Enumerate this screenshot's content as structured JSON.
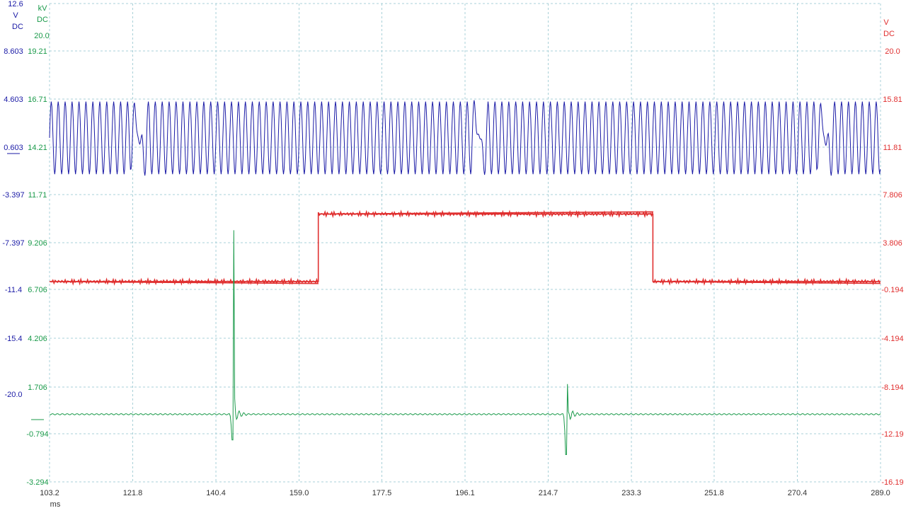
{
  "colors": {
    "blue": "#1a1aa6",
    "green": "#1a9a4a",
    "red": "#e03030",
    "grid": "#a8d0d8",
    "text": "#333333"
  },
  "chart_data": {
    "type": "line",
    "title": "",
    "grid": true,
    "x_axis": {
      "unit": "ms",
      "range": [
        103.2,
        289.0
      ],
      "ticks": [
        "103.2",
        "121.8",
        "140.4",
        "159.0",
        "177.5",
        "196.1",
        "214.7",
        "233.3",
        "251.8",
        "270.4",
        "289.0"
      ]
    },
    "axes": [
      {
        "id": "blue",
        "side": "left",
        "unit_lines": [
          "V",
          "DC"
        ],
        "top_label": "12.6",
        "range": [
          -23.0,
          12.6
        ],
        "ticks": [
          "8.603",
          "4.603",
          "0.603",
          "-3.397",
          "-7.397",
          "-11.4",
          "-15.4",
          "-20.0"
        ]
      },
      {
        "id": "green",
        "side": "left",
        "unit_lines": [
          "kV",
          "DC"
        ],
        "top_label": "20.0",
        "range": [
          -3.294,
          20.0
        ],
        "ticks": [
          "19.21",
          "16.71",
          "14.21",
          "11.71",
          "9.206",
          "6.706",
          "4.206",
          "1.706",
          "-0.794",
          "-3.294"
        ]
      },
      {
        "id": "red",
        "side": "right",
        "unit_lines": [
          "V",
          "DC"
        ],
        "range": [
          -16.19,
          22.0
        ],
        "ticks": [
          "20.0",
          "15.81",
          "11.81",
          "7.806",
          "3.806",
          "-0.194",
          "-4.194",
          "-8.194",
          "-12.19",
          "-16.19"
        ]
      }
    ],
    "series": [
      {
        "axis": "blue",
        "kind": "oscillation",
        "center": 2.6,
        "amplitude": 2.7,
        "period_ms": 1.55,
        "dips_at_ms": [
          121.8,
          198.0,
          275.2
        ]
      },
      {
        "axis": "red",
        "kind": "step",
        "points": [
          [
            103.2,
            -0.194
          ],
          [
            163.3,
            -0.194
          ],
          [
            163.3,
            5.2
          ],
          [
            238.1,
            5.2
          ],
          [
            238.1,
            -0.194
          ],
          [
            289.0,
            -0.194
          ]
        ]
      },
      {
        "axis": "green",
        "kind": "baseline_with_spikes",
        "baseline": 0.0,
        "spikes": [
          {
            "x": 144.3,
            "peak": 12.2,
            "dip": -1.4
          },
          {
            "x": 218.9,
            "peak": 2.0,
            "dip": -2.2
          }
        ]
      }
    ]
  }
}
